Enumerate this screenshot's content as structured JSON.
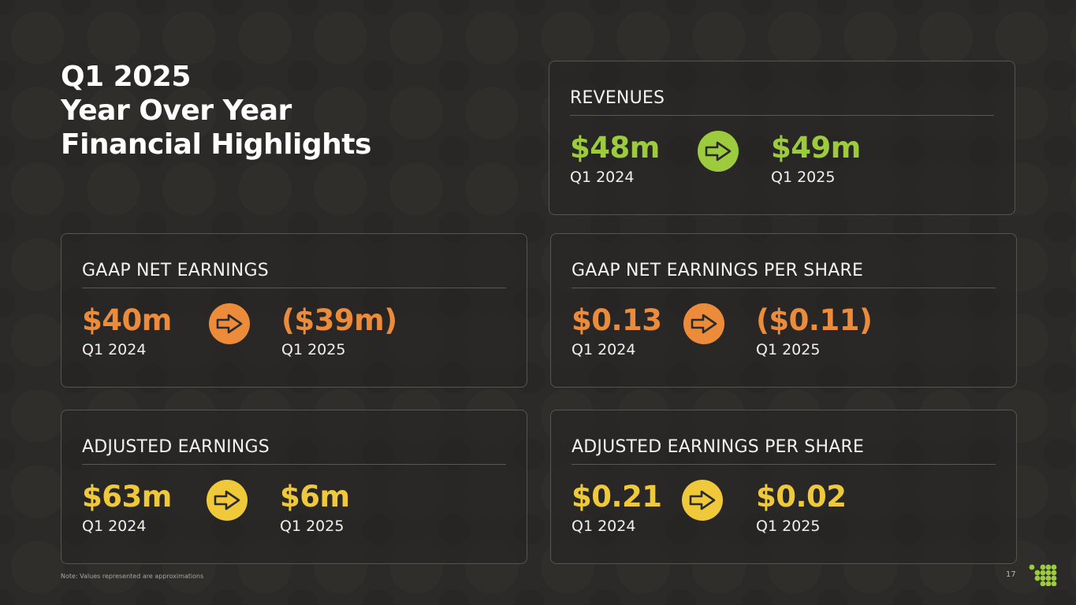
{
  "title": {
    "line1": "Q1 2025",
    "line2": "Year Over Year",
    "line3": "Financial Highlights"
  },
  "cards": [
    {
      "label": "REVENUES",
      "from_value": "$48m",
      "from_period": "Q1 2024",
      "to_value": "$49m",
      "to_period": "Q1 2025",
      "color": "#9ccc3d"
    },
    {
      "label": "GAAP NET EARNINGS",
      "from_value": "$40m",
      "from_period": "Q1 2024",
      "to_value": "($39m)",
      "to_period": "Q1 2025",
      "color": "#ec8c3a"
    },
    {
      "label": "GAAP NET EARNINGS PER SHARE",
      "from_value": "$0.13",
      "from_period": "Q1 2024",
      "to_value": "($0.11)",
      "to_period": "Q1 2025",
      "color": "#ec8c3a"
    },
    {
      "label": "ADJUSTED EARNINGS",
      "from_value": "$63m",
      "from_period": "Q1 2024",
      "to_value": "$6m",
      "to_period": "Q1 2025",
      "color": "#f0c93a"
    },
    {
      "label": "ADJUSTED EARNINGS PER SHARE",
      "from_value": "$0.21",
      "from_period": "Q1 2024",
      "to_value": "$0.02",
      "to_period": "Q1 2025",
      "color": "#f0c93a"
    }
  ],
  "footer": {
    "note": "Note: Values represented are approximations",
    "page_number": "17"
  },
  "icons": {
    "arrow": "arrow-right-icon",
    "logo": "dots-logo-icon"
  }
}
